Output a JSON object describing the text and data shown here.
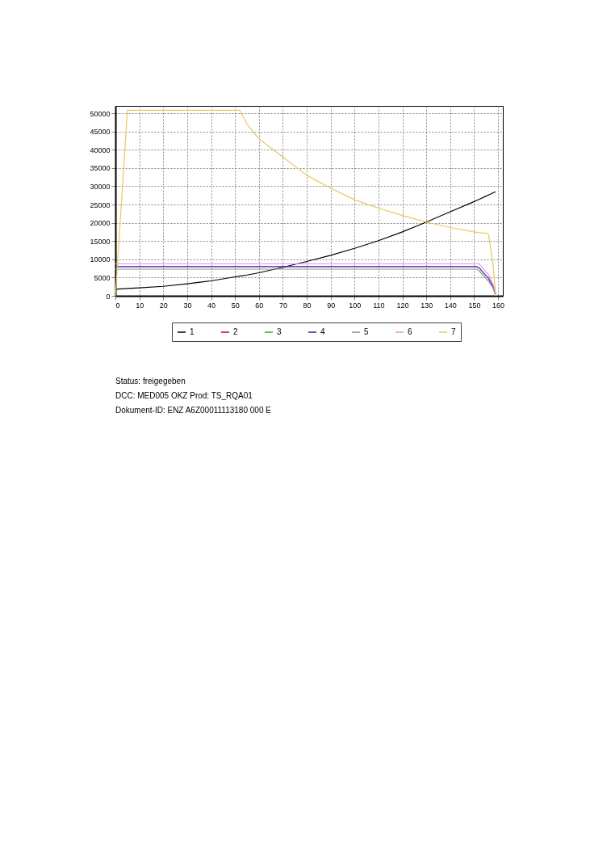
{
  "chart_data": {
    "type": "line",
    "x": [
      0,
      5,
      10,
      20,
      30,
      40,
      50,
      52,
      55,
      60,
      70,
      80,
      90,
      100,
      110,
      120,
      130,
      140,
      150,
      151,
      152,
      155,
      156,
      158,
      159
    ],
    "series": [
      {
        "name": "1",
        "color": "#000000",
        "values": [
          1800,
          2000,
          2200,
          2600,
          3300,
          4100,
          5200,
          5400,
          5700,
          6300,
          7800,
          9400,
          11100,
          13000,
          15100,
          17500,
          20200,
          23000,
          25800,
          26100,
          26400,
          27300,
          27600,
          28200,
          28500
        ]
      },
      {
        "name": "2",
        "color": "#cc0000",
        "values": [
          null,
          null,
          null,
          null,
          null,
          null,
          null,
          null,
          null,
          null,
          null,
          null,
          null,
          null,
          null,
          null,
          null,
          null,
          null,
          null,
          null,
          null,
          null,
          null,
          null
        ]
      },
      {
        "name": "3",
        "color": "#00cc00",
        "values": [
          null,
          null,
          null,
          null,
          null,
          null,
          null,
          null,
          null,
          null,
          null,
          null,
          null,
          null,
          null,
          null,
          null,
          null,
          null,
          null,
          null,
          null,
          null,
          null,
          null
        ]
      },
      {
        "name": "4",
        "color": "#2020a0",
        "values": [
          8000,
          8000,
          8000,
          8000,
          8000,
          8000,
          8000,
          8000,
          8000,
          8000,
          8000,
          8000,
          8000,
          8000,
          8000,
          8000,
          8000,
          8000,
          8000,
          8000,
          7700,
          5500,
          4800,
          2500,
          500
        ]
      },
      {
        "name": "5",
        "color": "#909090",
        "values": [
          7300,
          7300,
          7300,
          7300,
          7300,
          7300,
          7300,
          7300,
          7300,
          7300,
          7300,
          7300,
          7300,
          7300,
          7300,
          7300,
          7300,
          7300,
          7300,
          7300,
          6900,
          4700,
          4000,
          2000,
          0
        ]
      },
      {
        "name": "6",
        "color": "#ee88ee",
        "values": [
          8800,
          8800,
          8800,
          8800,
          8800,
          8800,
          8800,
          8800,
          8800,
          8800,
          8800,
          8800,
          8800,
          8800,
          8800,
          8800,
          8800,
          8800,
          8800,
          8800,
          8800,
          6500,
          5800,
          3000,
          800
        ]
      },
      {
        "name": "7",
        "color": "#e8c860",
        "values": [
          0,
          50800,
          50800,
          50800,
          50800,
          50800,
          50800,
          50800,
          47000,
          43000,
          38000,
          33000,
          29500,
          26300,
          24000,
          22000,
          20200,
          18700,
          17500,
          17400,
          17300,
          17100,
          17000,
          8000,
          0
        ]
      }
    ],
    "xlim": [
      0,
      162
    ],
    "xticks": [
      0,
      10,
      20,
      30,
      40,
      50,
      60,
      70,
      80,
      90,
      100,
      110,
      120,
      130,
      140,
      150,
      160
    ],
    "ylim": [
      0,
      52000
    ],
    "yticks": [
      0,
      5000,
      10000,
      15000,
      20000,
      25000,
      30000,
      35000,
      40000,
      45000,
      50000
    ],
    "grid": true,
    "legend": "bottom",
    "line_style": "solid",
    "marker": "none",
    "annotations": [
      "Status: freigegeben",
      "DCC: MED005 OKZ Prod: TS_RQA01",
      "Dokument-ID: ENZ A6Z00011113180 000 E"
    ]
  }
}
